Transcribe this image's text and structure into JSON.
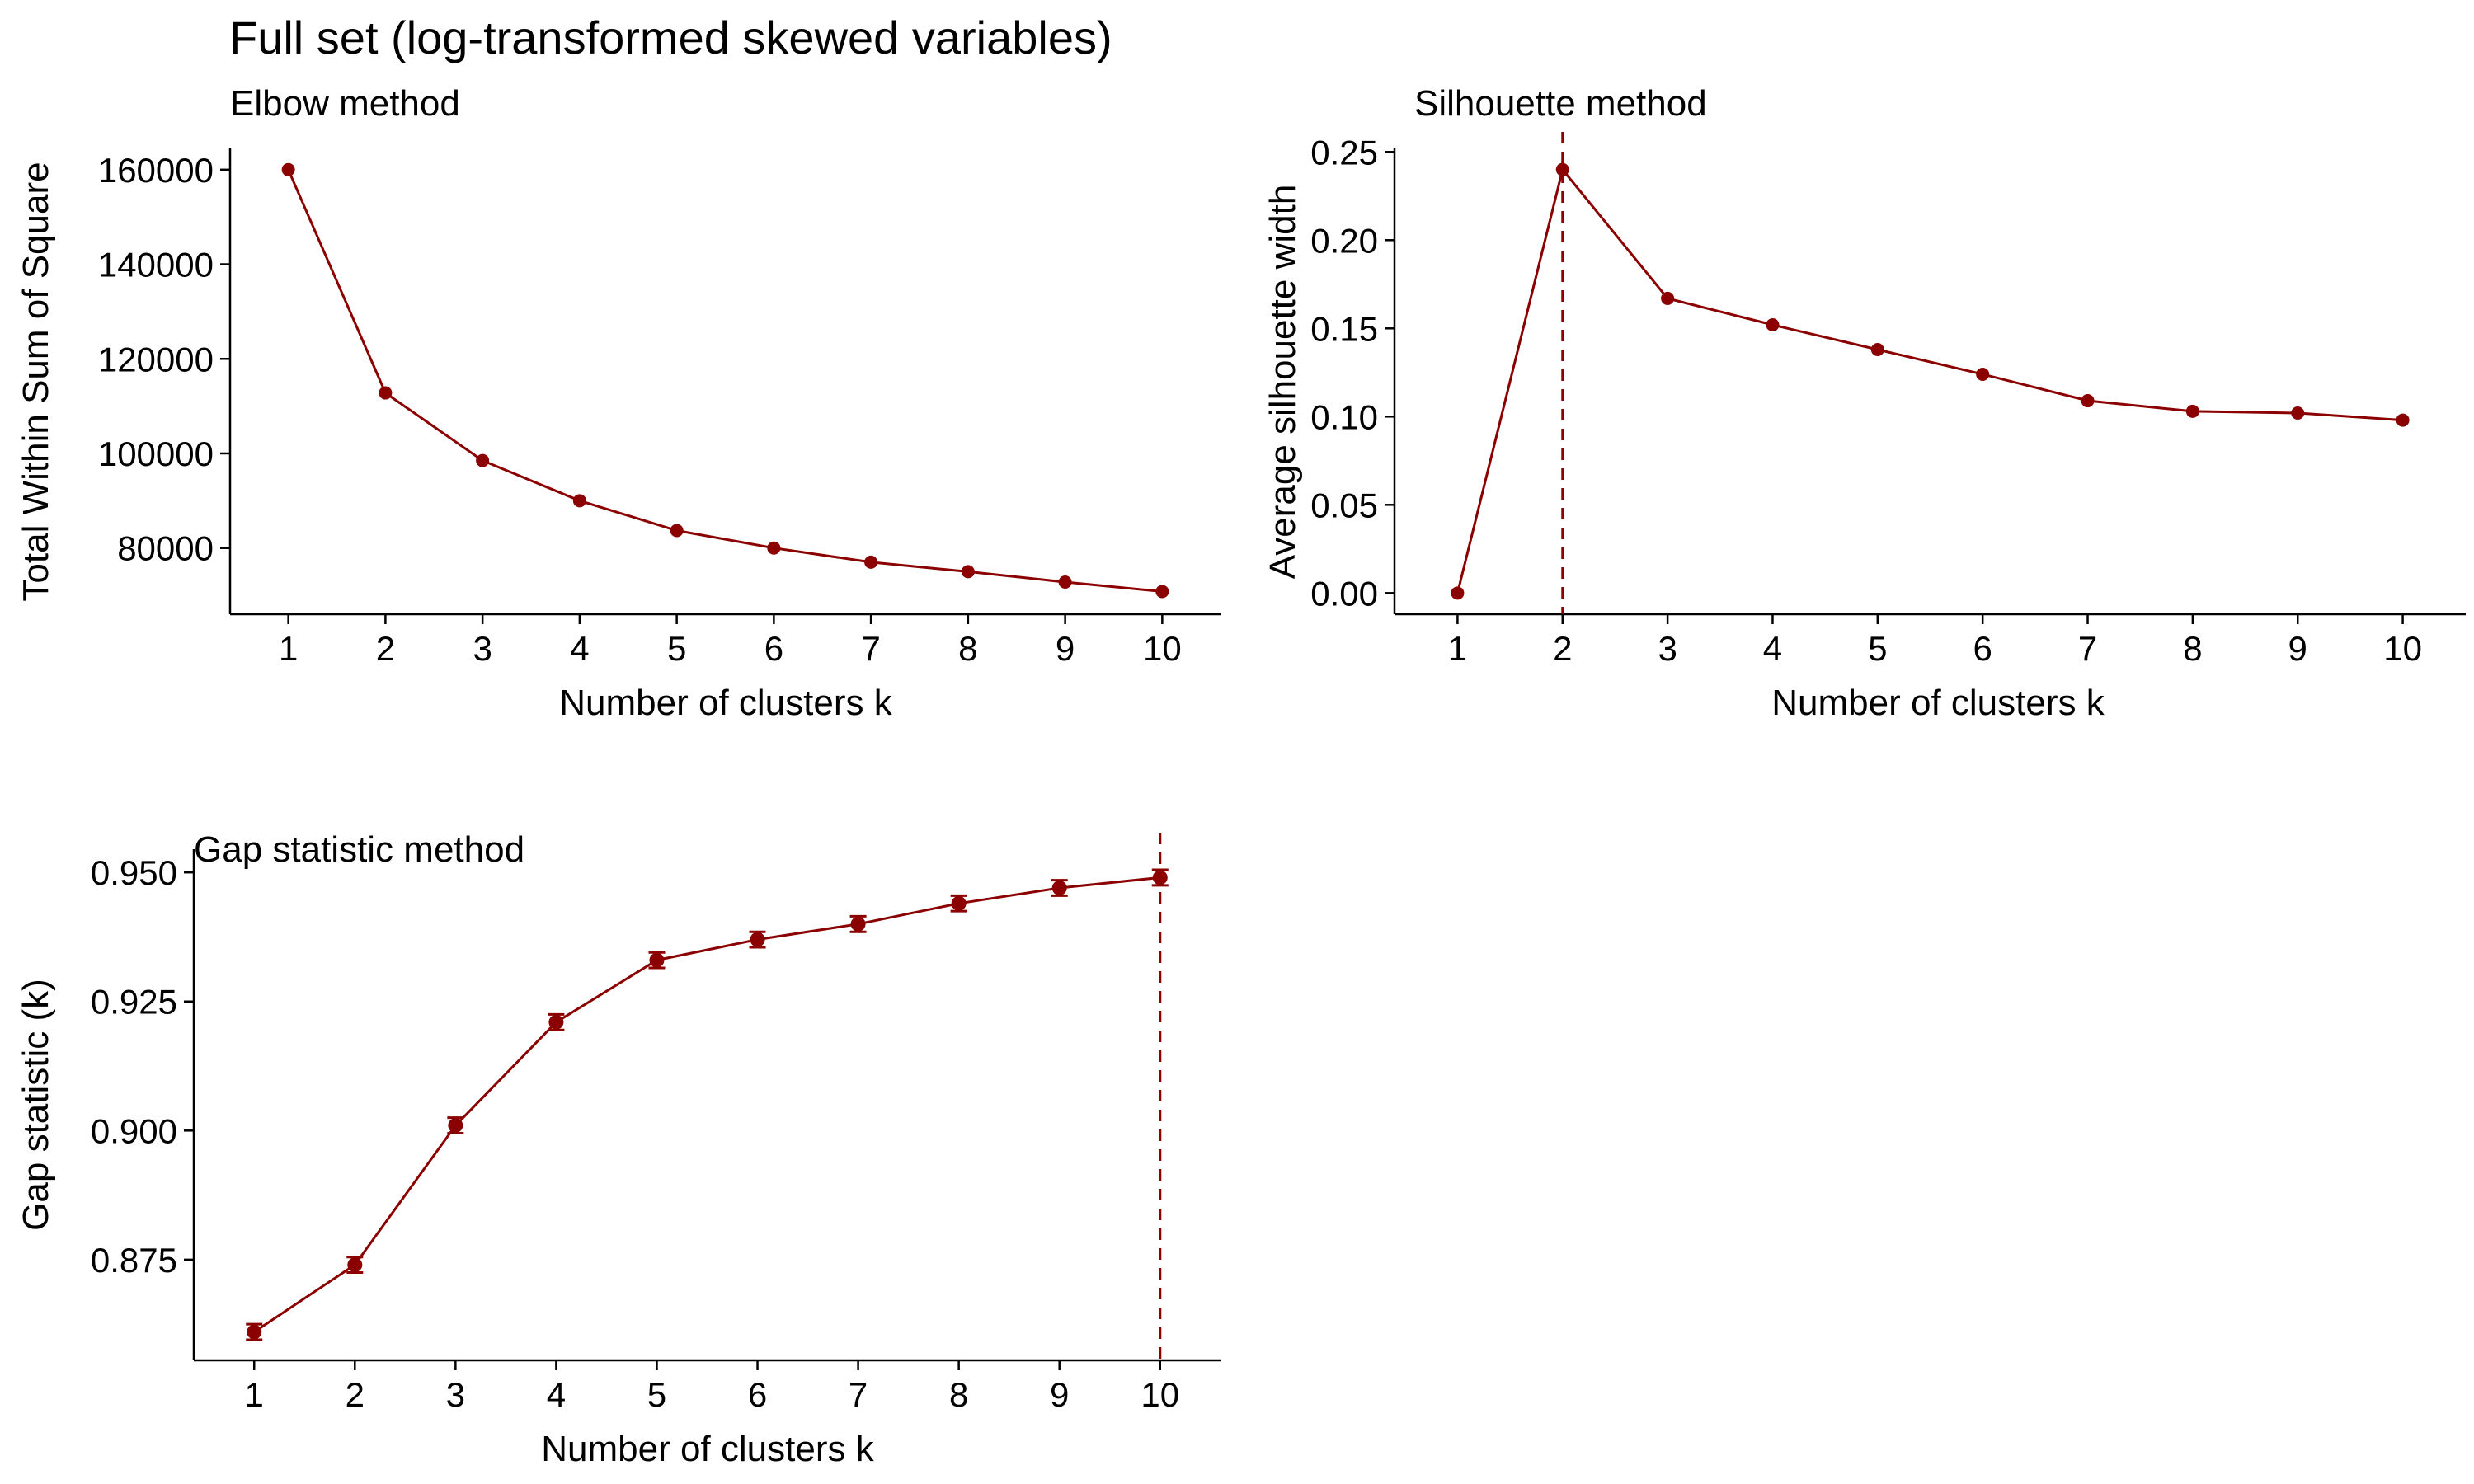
{
  "title": "Full set (log-transformed skewed variables)",
  "colors": {
    "series": "#8b0000",
    "axis": "#000000"
  },
  "chart_data": [
    {
      "type": "line",
      "title": "Elbow method",
      "xlabel": "Number of clusters k",
      "ylabel": "Total Within Sum of Square",
      "x": [
        1,
        2,
        3,
        4,
        5,
        6,
        7,
        8,
        9,
        10
      ],
      "values": [
        160000,
        112800,
        98500,
        90000,
        83700,
        80000,
        77000,
        75000,
        72800,
        70800
      ],
      "xlim": [
        0.4,
        10.6
      ],
      "ylim": [
        66000,
        164500
      ],
      "yticks": [
        80000,
        100000,
        120000,
        140000,
        160000
      ],
      "grid": false
    },
    {
      "type": "line",
      "title": "Silhouette method",
      "xlabel": "Number of clusters k",
      "ylabel": "Average silhouette width",
      "x": [
        1,
        2,
        3,
        4,
        5,
        6,
        7,
        8,
        9,
        10
      ],
      "values": [
        0.0,
        0.24,
        0.167,
        0.152,
        0.138,
        0.124,
        0.109,
        0.103,
        0.102,
        0.098
      ],
      "xlim": [
        0.4,
        10.6
      ],
      "ylim": [
        -0.012,
        0.252
      ],
      "yticks": [
        0.0,
        0.05,
        0.1,
        0.15,
        0.2,
        0.25
      ],
      "ytick_decimals": 2,
      "vline": 2,
      "grid": false
    },
    {
      "type": "line",
      "title": "Gap statistic method",
      "xlabel": "Number of clusters k",
      "ylabel": "Gap statistic (k)",
      "x": [
        1,
        2,
        3,
        4,
        5,
        6,
        7,
        8,
        9,
        10
      ],
      "values": [
        0.861,
        0.874,
        0.901,
        0.921,
        0.933,
        0.937,
        0.94,
        0.944,
        0.947,
        0.949
      ],
      "error": [
        0.0015,
        0.0015,
        0.0015,
        0.0015,
        0.0015,
        0.0015,
        0.0015,
        0.0015,
        0.0015,
        0.0015
      ],
      "xlim": [
        0.4,
        10.6
      ],
      "ylim": [
        0.8555,
        0.9545
      ],
      "yticks": [
        0.875,
        0.9,
        0.925,
        0.95
      ],
      "ytick_decimals": 3,
      "vline": 10,
      "grid": false
    }
  ]
}
